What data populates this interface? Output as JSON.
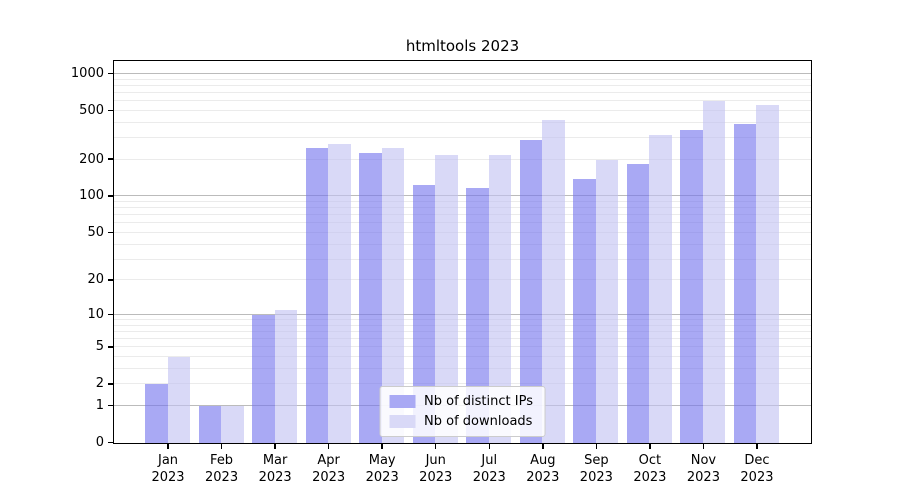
{
  "chart_data": {
    "type": "bar",
    "title": "htmltools 2023",
    "categories": [
      "Jan",
      "Feb",
      "Mar",
      "Apr",
      "May",
      "Jun",
      "Jul",
      "Aug",
      "Sep",
      "Oct",
      "Nov",
      "Dec"
    ],
    "category_year": "2023",
    "series": [
      {
        "name": "Nb of distinct IPs",
        "color": "rgba(116,116,238,0.62)",
        "legend_color": "#a9a9f4",
        "values": [
          2,
          1,
          10,
          250,
          225,
          125,
          118,
          290,
          140,
          185,
          350,
          390
        ]
      },
      {
        "name": "Nb of downloads",
        "color": "rgba(194,194,242,0.62)",
        "legend_color": "#d9d9f7",
        "values": [
          4,
          1,
          11,
          270,
          248,
          220,
          220,
          425,
          200,
          320,
          600,
          555
        ]
      }
    ],
    "y_scale": "log1p",
    "ylabel": "",
    "xlabel": "",
    "y_ticks": [
      0,
      1,
      2,
      5,
      10,
      20,
      50,
      100,
      200,
      500,
      1000
    ],
    "y_major_grid": [
      1,
      10,
      100,
      1000
    ],
    "y_max": 1250,
    "legend_position": "lower center",
    "grid": true,
    "colors": {
      "grid_major": "#bbbbbb",
      "grid_minor": "#ebebeb",
      "axis": "#000000",
      "background": "#ffffff"
    }
  }
}
